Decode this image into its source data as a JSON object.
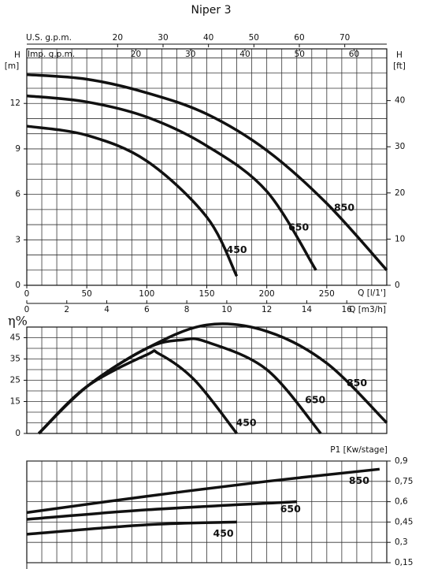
{
  "chart_data": [
    {
      "type": "line",
      "title": "Niper 3",
      "ylabel": "H",
      "yunit": "[m]",
      "y2label": "H",
      "y2unit": "[ft]",
      "xlabel": "Q [l/1']",
      "xlim": [
        0,
        300
      ],
      "xticks": [
        0,
        50,
        100,
        150,
        200,
        250
      ],
      "ylim": [
        0,
        15.6
      ],
      "yticks": [
        0,
        3,
        6,
        9,
        12
      ],
      "y2lim": [
        0,
        51.2
      ],
      "y2ticks": [
        0,
        10,
        20,
        30,
        40
      ],
      "x2label": "Q [m3/h]",
      "x2lim": [
        0,
        18
      ],
      "x2ticks": [
        0,
        2,
        4,
        6,
        8,
        10,
        12,
        14,
        16
      ],
      "x3label": "U.S. g.p.m.",
      "x3lim": [
        0,
        79.25
      ],
      "x3ticks": [
        20,
        30,
        40,
        50,
        60,
        70
      ],
      "x4label": "Imp. g.p.m.",
      "x4lim": [
        0,
        66
      ],
      "x4ticks": [
        20,
        30,
        40,
        50,
        60
      ],
      "grid": true,
      "minor_xstep": 12.5,
      "minor_ystep": 1,
      "series": [
        {
          "name": "450",
          "color": "#111111",
          "x": [
            0,
            50,
            100,
            150,
            175
          ],
          "values": [
            10.5,
            9.9,
            8.2,
            4.5,
            0.6
          ]
        },
        {
          "name": "650",
          "color": "#111111",
          "x": [
            0,
            50,
            100,
            150,
            200,
            241
          ],
          "values": [
            12.5,
            12.1,
            11.1,
            9.2,
            6.2,
            1.0
          ]
        },
        {
          "name": "850",
          "color": "#111111",
          "x": [
            0,
            50,
            100,
            150,
            200,
            250,
            300
          ],
          "values": [
            13.9,
            13.6,
            12.7,
            11.3,
            8.9,
            5.4,
            1.0
          ]
        }
      ]
    },
    {
      "type": "line",
      "ylabel": "η%",
      "xlim": [
        0,
        300
      ],
      "ylim": [
        0,
        50
      ],
      "yticks": [
        0,
        15,
        25,
        35,
        45
      ],
      "grid": true,
      "minor_xstep": 12.5,
      "minor_ystep": 5,
      "series": [
        {
          "name": "450",
          "color": "#111111",
          "x": [
            10,
            50,
            100,
            110,
            140,
            175
          ],
          "values": [
            0,
            22,
            37,
            37.5,
            25,
            0
          ]
        },
        {
          "name": "650",
          "color": "#111111",
          "x": [
            10,
            50,
            100,
            130,
            150,
            200,
            245
          ],
          "values": [
            0,
            22,
            40,
            44,
            43,
            30,
            0
          ]
        },
        {
          "name": "850",
          "color": "#111111",
          "x": [
            10,
            50,
            100,
            150,
            200,
            250,
            300
          ],
          "values": [
            0,
            22,
            40,
            51,
            48,
            33,
            5
          ]
        }
      ]
    },
    {
      "type": "line",
      "ylabel": "P1 [Kw/stage]",
      "y_side": "right",
      "xlim": [
        0,
        300
      ],
      "ylim": [
        0.15,
        0.9
      ],
      "yticks": [
        {
          "value": 0.15,
          "label": "0,15"
        },
        {
          "value": 0.3,
          "label": "0,3"
        },
        {
          "value": 0.45,
          "label": "0,45"
        },
        {
          "value": 0.6,
          "label": "0,6"
        },
        {
          "value": 0.75,
          "label": "0,75"
        },
        {
          "value": 0.9,
          "label": "0,9"
        }
      ],
      "grid": true,
      "minor_xstep": 12.5,
      "series": [
        {
          "name": "450",
          "color": "#111111",
          "x": [
            0,
            100,
            175
          ],
          "values": [
            0.36,
            0.43,
            0.45
          ]
        },
        {
          "name": "650",
          "color": "#111111",
          "x": [
            0,
            100,
            225
          ],
          "values": [
            0.47,
            0.54,
            0.6
          ]
        },
        {
          "name": "850",
          "color": "#111111",
          "x": [
            0,
            100,
            200,
            294
          ],
          "values": [
            0.52,
            0.64,
            0.75,
            0.84
          ]
        }
      ]
    }
  ]
}
